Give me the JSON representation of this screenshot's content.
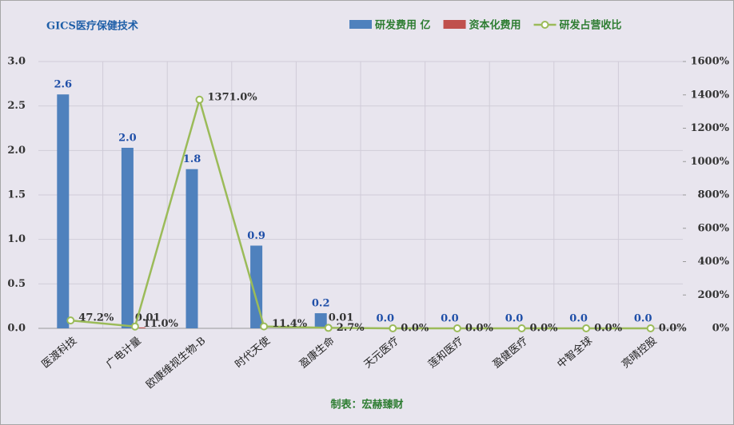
{
  "chart_data": {
    "type": "bar-line",
    "title": "GICS医疗保健技术",
    "footer": "制表：宏赫臻财",
    "categories": [
      "医渡科技",
      "广电计量",
      "欧康维视生物-B",
      "时代天使",
      "盈康生命",
      "天元医疗",
      "莲和医疗",
      "盈健医疗",
      "中智全球",
      "亮晴控股"
    ],
    "series": [
      {
        "name": "研发费用 亿",
        "type": "bar",
        "color": "#4f81bd",
        "values": [
          2.63,
          2.03,
          1.79,
          0.93,
          0.17,
          0,
          0,
          0,
          0,
          0
        ],
        "value_labels": [
          "2.6",
          "2.0",
          "1.8",
          "0.9",
          "0.2",
          "0.0",
          "0.0",
          "0.0",
          "0.0",
          "0.0"
        ]
      },
      {
        "name": "资本化费用",
        "type": "bar",
        "color": "#c0504d",
        "values": [
          null,
          0.01,
          null,
          null,
          0.01,
          null,
          null,
          null,
          null,
          null
        ]
      },
      {
        "name": "研发占营收比",
        "type": "line",
        "axis": "y2",
        "color": "#9bbb59",
        "values": [
          47.2,
          11.0,
          1371.0,
          11.4,
          2.7,
          0,
          0,
          0,
          0,
          0
        ],
        "value_labels": [
          "47.2%",
          "11.0%",
          "1371.0%",
          "11.4%",
          "2.7%",
          "0.0%",
          "0.0%",
          "0.0%",
          "0.0%",
          "0.0%"
        ]
      }
    ],
    "ylim": [
      0,
      3
    ],
    "yticks": [
      {
        "value": 0,
        "label": "0.0"
      },
      {
        "value": 0.5,
        "label": "0.5"
      },
      {
        "value": 1,
        "label": "1.0"
      },
      {
        "value": 1.5,
        "label": "1.5"
      },
      {
        "value": 2,
        "label": "2.0"
      },
      {
        "value": 2.5,
        "label": "2.5"
      },
      {
        "value": 3,
        "label": "3.0"
      }
    ],
    "y2lim": [
      0,
      1600
    ],
    "y2ticks": [
      {
        "value": 0,
        "label": "0%"
      },
      {
        "value": 200,
        "label": "200%"
      },
      {
        "value": 400,
        "label": "400%"
      },
      {
        "value": 600,
        "label": "600%"
      },
      {
        "value": 800,
        "label": "800%"
      },
      {
        "value": 1000,
        "label": "1000%"
      },
      {
        "value": 1200,
        "label": "1200%"
      },
      {
        "value": 1400,
        "label": "1400%"
      },
      {
        "value": 1600,
        "label": "1600%"
      }
    ],
    "grid": true
  }
}
